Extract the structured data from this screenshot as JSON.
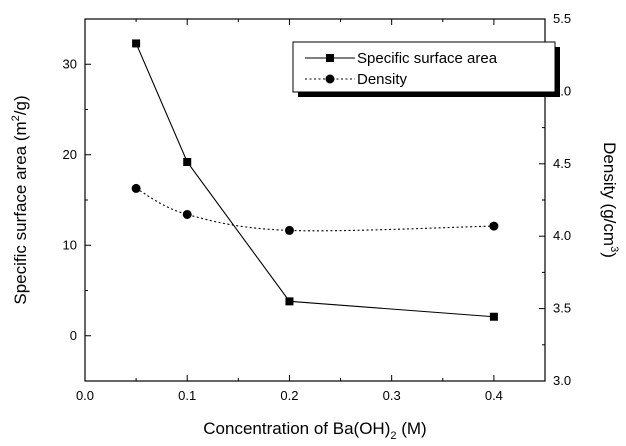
{
  "chart_data": {
    "type": "line",
    "title": "",
    "xlabel": {
      "prefix": "Concentration of Ba(OH)",
      "sub": "2",
      "suffix": " (M)"
    },
    "ylabel_left": {
      "prefix": "Specific surface area (m",
      "sup": "2",
      "suffix": "/g)"
    },
    "ylabel_right": {
      "prefix": "Density (g/cm",
      "sup": "3",
      "suffix": ")"
    },
    "xlim": [
      0.0,
      0.45
    ],
    "ylim_left": [
      -5,
      35
    ],
    "ylim_right": [
      3.0,
      5.5
    ],
    "x_ticks": [
      "0.0",
      "0.1",
      "0.2",
      "0.3",
      "0.4"
    ],
    "y_left_ticks": [
      "0",
      "10",
      "20",
      "30"
    ],
    "y_right_ticks": [
      "3.0",
      "3.5",
      "4.0",
      "4.5",
      "5.0",
      "5.5"
    ],
    "grid": false,
    "legend_position": "top-right",
    "series": [
      {
        "name": "Specific surface area",
        "axis": "left",
        "marker": "square",
        "line_style": "solid",
        "color": "#000000",
        "x": [
          0.05,
          0.1,
          0.2,
          0.4
        ],
        "y": [
          32.3,
          19.2,
          3.8,
          2.1
        ]
      },
      {
        "name": "Density",
        "axis": "right",
        "marker": "circle",
        "line_style": "dotted",
        "color": "#000000",
        "x": [
          0.05,
          0.1,
          0.2,
          0.4
        ],
        "y": [
          4.33,
          4.15,
          4.04,
          4.07
        ]
      }
    ]
  }
}
